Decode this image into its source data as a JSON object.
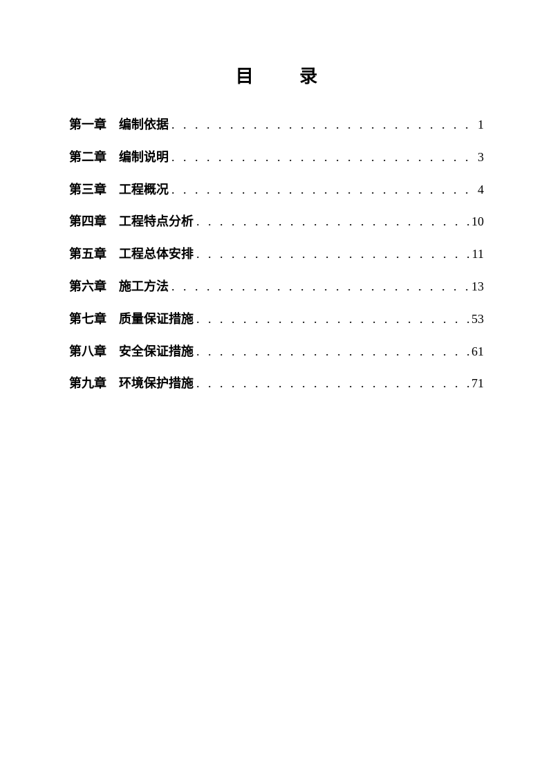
{
  "toc": {
    "title": "目 录",
    "title_fontsize": 26,
    "entry_fontsize": 18,
    "line_height": 2.6,
    "text_color": "#000000",
    "background_color": "#ffffff",
    "font_family": "KaiTi",
    "entries": [
      {
        "chapter": "第一章",
        "title": "编制依据",
        "page": "1"
      },
      {
        "chapter": "第二章",
        "title": "编制说明",
        "page": "3"
      },
      {
        "chapter": "第三章",
        "title": "工程概况",
        "page": "4"
      },
      {
        "chapter": "第四章",
        "title": "工程特点分析",
        "page": "10"
      },
      {
        "chapter": "第五章",
        "title": "工程总体安排",
        "page": "11"
      },
      {
        "chapter": "第六章",
        "title": "施工方法",
        "page": "13"
      },
      {
        "chapter": "第七章",
        "title": "质量保证措施",
        "page": "53"
      },
      {
        "chapter": "第八章",
        "title": "安全保证措施",
        "page": "61"
      },
      {
        "chapter": "第九章",
        "title": "环境保护措施",
        "page": "71"
      }
    ]
  }
}
